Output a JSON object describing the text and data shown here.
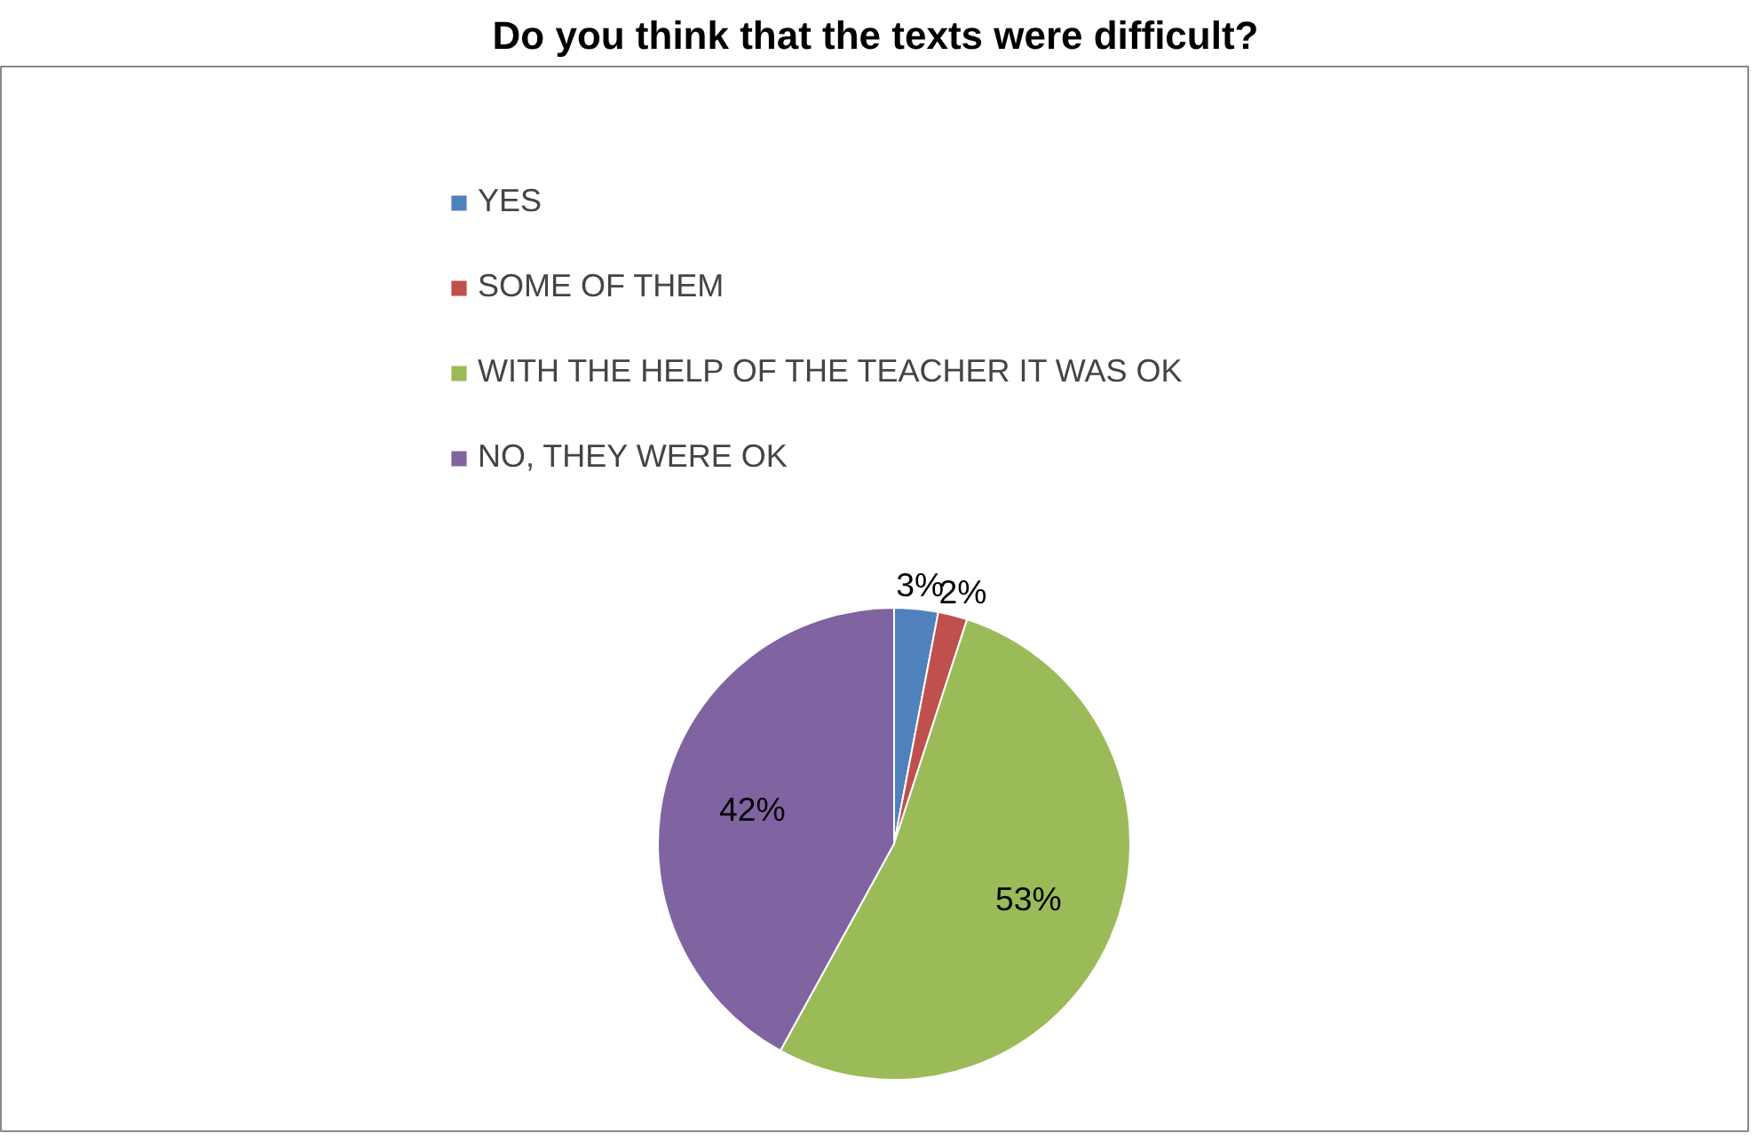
{
  "chart_data": {
    "type": "pie",
    "title": "Do you think that the texts were difficult?",
    "categories": [
      "YES",
      "SOME OF THEM",
      "WITH THE HELP OF THE TEACHER IT WAS OK",
      "NO, THEY WERE OK"
    ],
    "values": [
      3,
      2,
      53,
      42
    ],
    "colors": [
      "#4f81bd",
      "#c0504d",
      "#9bbb59",
      "#8064a2"
    ],
    "value_labels": [
      "3%",
      "2%",
      "53%",
      "42%"
    ],
    "legend": "top"
  }
}
